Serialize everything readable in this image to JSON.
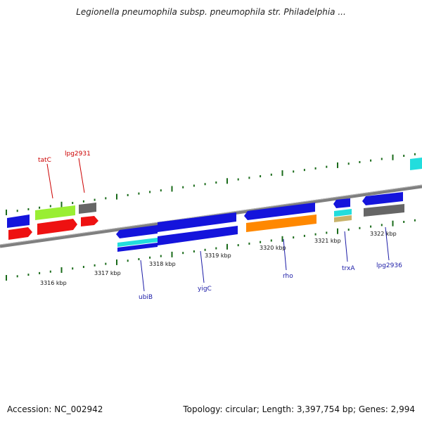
{
  "title": "Legionella pneumophila subsp. pneumophila str. Philadelphia ...",
  "footer": {
    "accession": "Accession: NC_002942",
    "summary": "Topology: circular; Length: 3,397,754 bp; Genes: 2,994"
  },
  "colors": {
    "backbone": "#7f7f7f",
    "tick": "#1a6b1a",
    "gene_blue": "#1414dc",
    "gene_red": "#ee1111",
    "gene_green": "#99ee33",
    "gene_gray": "#666666",
    "gene_cyan": "#22dddd",
    "gene_orange": "#ff8800",
    "gene_tan": "#c8b26a",
    "label_blue": "#1a1aa6",
    "label_red": "#cc0000"
  },
  "axis_labels": [
    "3316 kbp",
    "3317 kbp",
    "3318 kbp",
    "3319 kbp",
    "3320 kbp",
    "3321 kbp",
    "3322 kbp"
  ],
  "gene_labels": [
    "tatC",
    "lpg2931",
    "ubiB",
    "yigC",
    "rho",
    "trxA",
    "lpg2936"
  ]
}
